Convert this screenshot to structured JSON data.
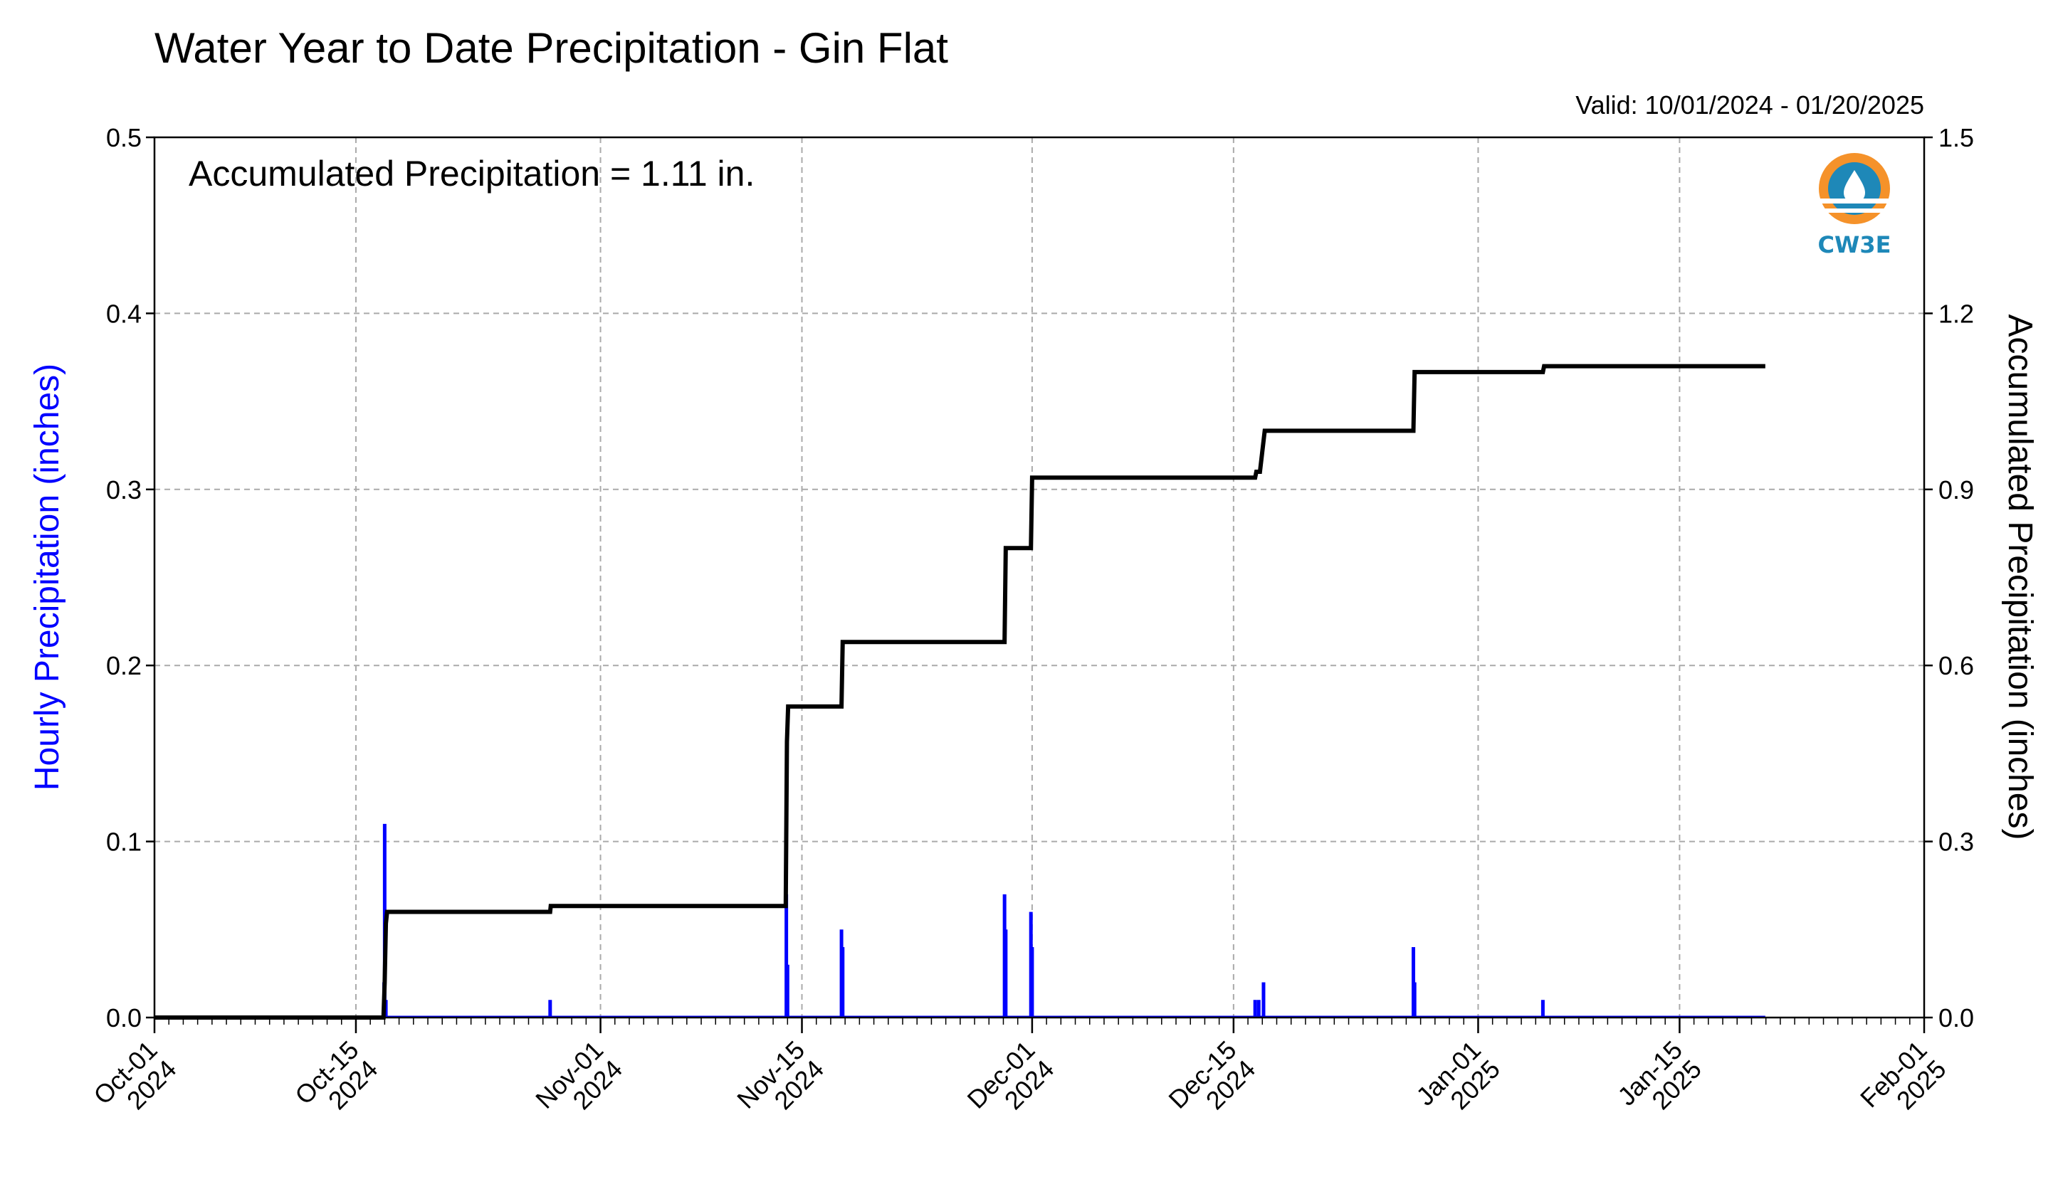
{
  "chart_data": {
    "type": "bar+line",
    "title": "Water Year to Date Precipitation - Gin Flat",
    "valid_text": "Valid: 10/01/2024 - 01/20/2025",
    "annotation": "Accumulated Precipitation = 1.11 in.",
    "left_ylabel": "Hourly Precipitation (inches)",
    "right_ylabel": "Accumulated Precipitation (inches)",
    "xlim": [
      "2024-10-01",
      "2025-02-01"
    ],
    "left_ylim": [
      0,
      0.5
    ],
    "right_ylim": [
      0,
      1.5
    ],
    "left_yticks": [
      "0.0",
      "0.1",
      "0.2",
      "0.3",
      "0.4",
      "0.5"
    ],
    "right_yticks": [
      "0.0",
      "0.3",
      "0.6",
      "0.9",
      "1.2",
      "1.5"
    ],
    "x_ticks": [
      {
        "date": "2024-10-01",
        "line1": "Oct-01",
        "line2": "2024"
      },
      {
        "date": "2024-10-15",
        "line1": "Oct-15",
        "line2": "2024"
      },
      {
        "date": "2024-11-01",
        "line1": "Nov-01",
        "line2": "2024"
      },
      {
        "date": "2024-11-15",
        "line1": "Nov-15",
        "line2": "2024"
      },
      {
        "date": "2024-12-01",
        "line1": "Dec-01",
        "line2": "2024"
      },
      {
        "date": "2024-12-15",
        "line1": "Dec-15",
        "line2": "2024"
      },
      {
        "date": "2025-01-01",
        "line1": "Jan-01",
        "line2": "2025"
      },
      {
        "date": "2025-01-15",
        "line1": "Jan-15",
        "line2": "2025"
      },
      {
        "date": "2025-02-01",
        "line1": "Feb-01",
        "line2": "2025"
      }
    ],
    "grid": true,
    "hourly_color": "#0000ff",
    "accum_color": "#000000",
    "hourly_series": {
      "name": "Hourly Precipitation (inches)",
      "points": [
        [
          "2024-10-16T23:00",
          0.02
        ],
        [
          "2024-10-17T00:00",
          0.11
        ],
        [
          "2024-10-17T02:00",
          0.01
        ],
        [
          "2024-10-28T12:00",
          0.01
        ],
        [
          "2024-11-13T22:00",
          0.07
        ],
        [
          "2024-11-14T00:00",
          0.03
        ],
        [
          "2024-11-17T18:00",
          0.05
        ],
        [
          "2024-11-17T20:00",
          0.04
        ],
        [
          "2024-11-29T02:00",
          0.07
        ],
        [
          "2024-11-29T04:00",
          0.05
        ],
        [
          "2024-11-30T22:00",
          0.06
        ],
        [
          "2024-12-01T00:00",
          0.04
        ],
        [
          "2024-12-16T12:00",
          0.01
        ],
        [
          "2024-12-16T18:00",
          0.01
        ],
        [
          "2024-12-17T02:00",
          0.02
        ],
        [
          "2024-12-27T12:00",
          0.04
        ],
        [
          "2024-12-27T14:00",
          0.02
        ],
        [
          "2025-01-05T12:00",
          0.01
        ]
      ]
    },
    "accumulated_series": {
      "name": "Accumulated Precipitation (inches)",
      "points": [
        [
          "2024-10-01T00:00",
          0.0
        ],
        [
          "2024-10-16T22:00",
          0.0
        ],
        [
          "2024-10-17T00:00",
          0.06
        ],
        [
          "2024-10-17T02:00",
          0.16
        ],
        [
          "2024-10-17T04:00",
          0.18
        ],
        [
          "2024-10-28T12:00",
          0.18
        ],
        [
          "2024-10-28T13:00",
          0.19
        ],
        [
          "2024-11-13T21:00",
          0.19
        ],
        [
          "2024-11-13T23:00",
          0.47
        ],
        [
          "2024-11-14T01:00",
          0.53
        ],
        [
          "2024-11-17T18:00",
          0.53
        ],
        [
          "2024-11-17T20:00",
          0.64
        ],
        [
          "2024-11-29T02:00",
          0.64
        ],
        [
          "2024-11-29T04:00",
          0.8
        ],
        [
          "2024-11-30T22:00",
          0.8
        ],
        [
          "2024-12-01T00:00",
          0.92
        ],
        [
          "2024-12-16T12:00",
          0.92
        ],
        [
          "2024-12-16T14:00",
          0.93
        ],
        [
          "2024-12-16T20:00",
          0.93
        ],
        [
          "2024-12-17T04:00",
          1.0
        ],
        [
          "2024-12-27T12:00",
          1.0
        ],
        [
          "2024-12-27T14:00",
          1.1
        ],
        [
          "2025-01-05T12:00",
          1.1
        ],
        [
          "2025-01-05T14:00",
          1.11
        ],
        [
          "2025-01-20T23:00",
          1.11
        ]
      ]
    }
  },
  "logo": {
    "text": "CW3E",
    "colors": {
      "orange": "#f5922a",
      "blue": "#1e88b8"
    }
  }
}
